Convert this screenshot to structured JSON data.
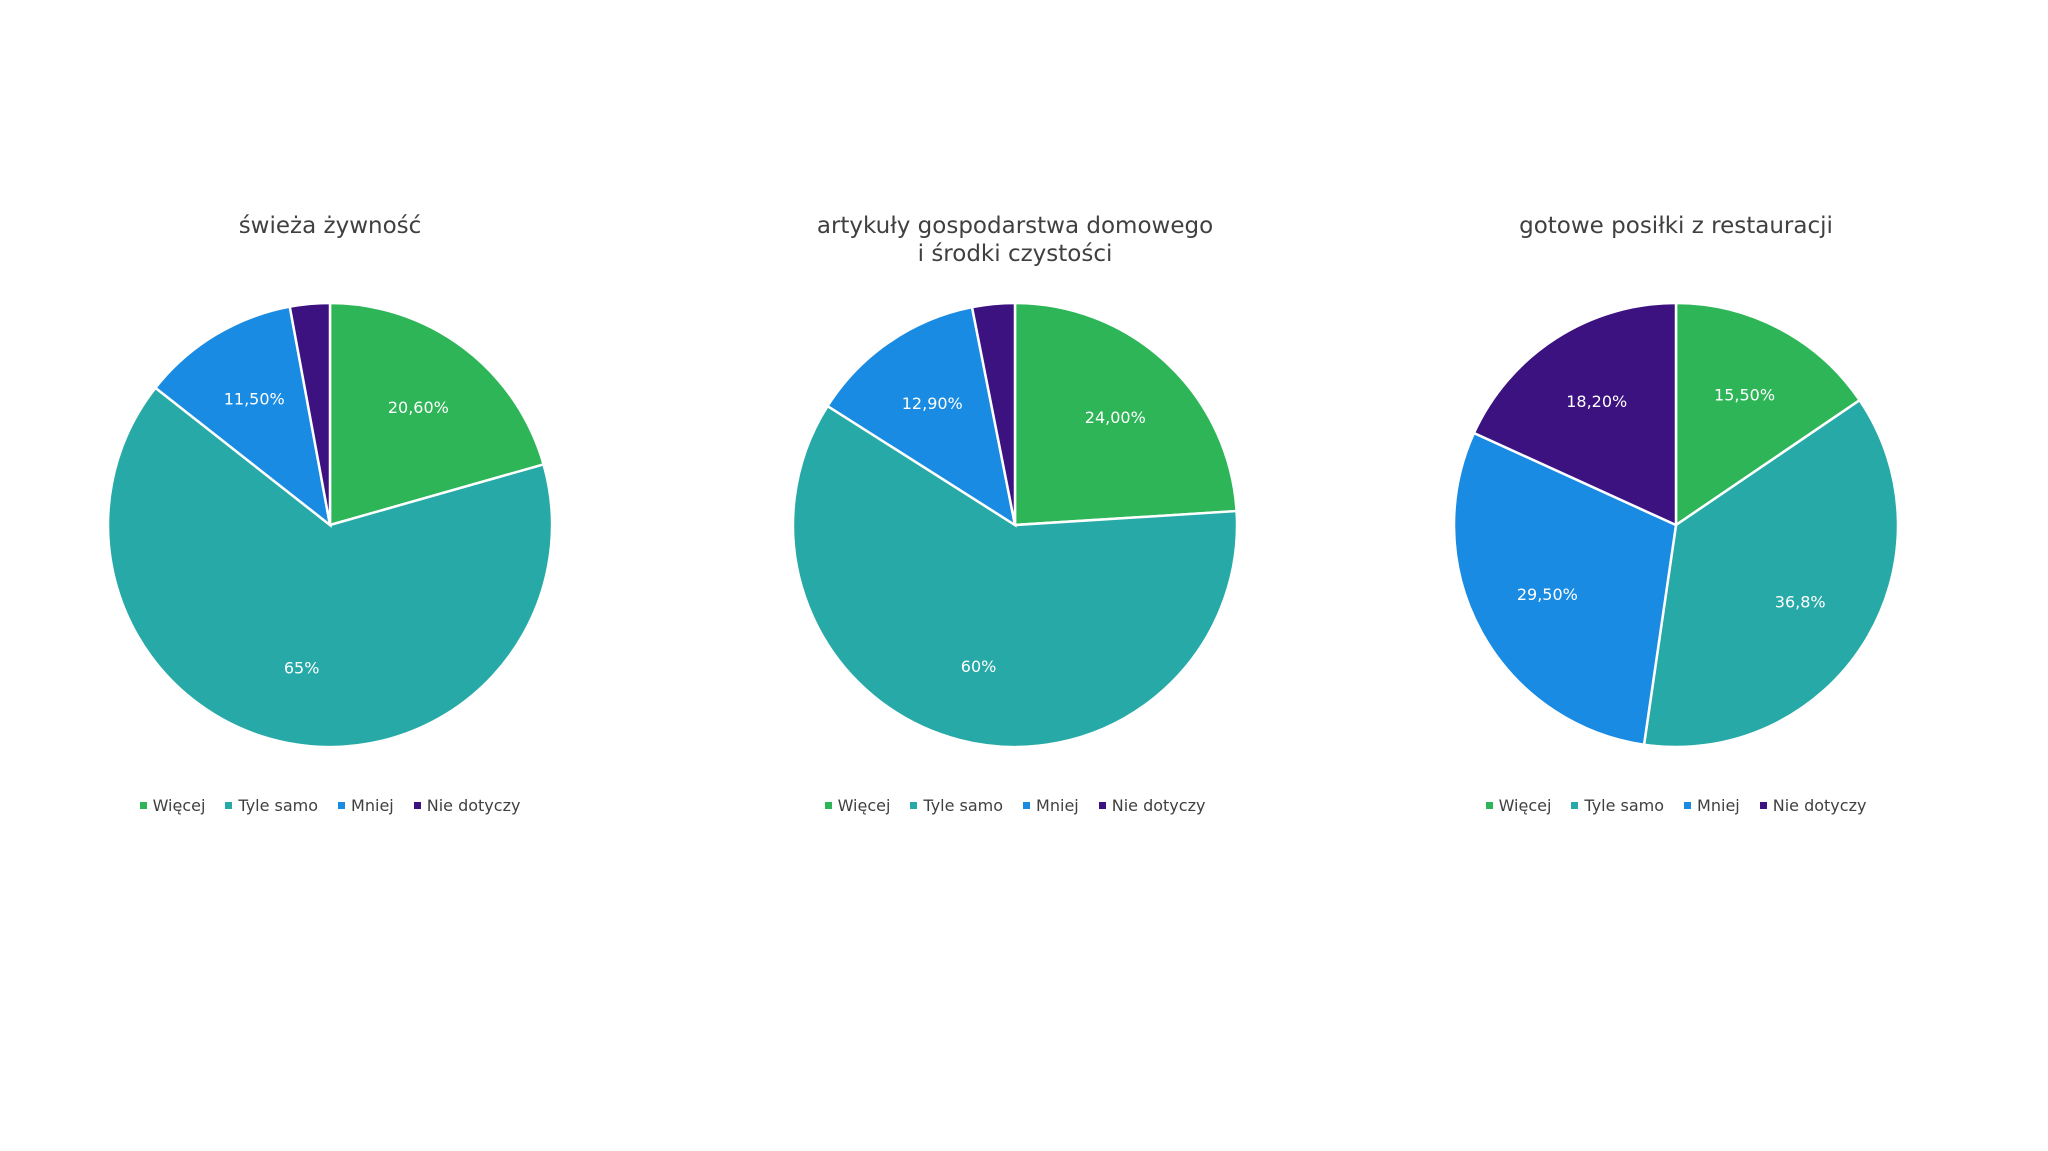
{
  "chart_data": [
    {
      "type": "pie",
      "title": "świeża żywność",
      "categories": [
        "Więcej",
        "Tyle samo",
        "Mniej",
        "Nie dotyczy"
      ],
      "values": [
        20.6,
        65,
        11.5,
        2.9
      ],
      "data_labels": [
        "20,60%",
        "65%",
        "11,50%",
        ""
      ],
      "colors": [
        "#2db557",
        "#27aaa7",
        "#1a8be2",
        "#3b1280"
      ],
      "legend_position": "bottom"
    },
    {
      "type": "pie",
      "title": "artykuły gospodarstwa domowego\ni środki czystości",
      "categories": [
        "Więcej",
        "Tyle samo",
        "Mniej",
        "Nie dotyczy"
      ],
      "values": [
        24.0,
        60,
        12.9,
        3.1
      ],
      "data_labels": [
        "24,00%",
        "60%",
        "12,90%",
        ""
      ],
      "colors": [
        "#2db557",
        "#27aaa7",
        "#1a8be2",
        "#3b1280"
      ],
      "legend_position": "bottom"
    },
    {
      "type": "pie",
      "title": "gotowe posiłki z restauracji",
      "categories": [
        "Więcej",
        "Tyle samo",
        "Mniej",
        "Nie dotyczy"
      ],
      "values": [
        15.5,
        36.8,
        29.5,
        18.2
      ],
      "data_labels": [
        "15,50%",
        "36,8%",
        "29,50%",
        "18,20%"
      ],
      "colors": [
        "#2db557",
        "#27aaa7",
        "#1a8be2",
        "#3b1280"
      ],
      "legend_position": "bottom"
    }
  ]
}
